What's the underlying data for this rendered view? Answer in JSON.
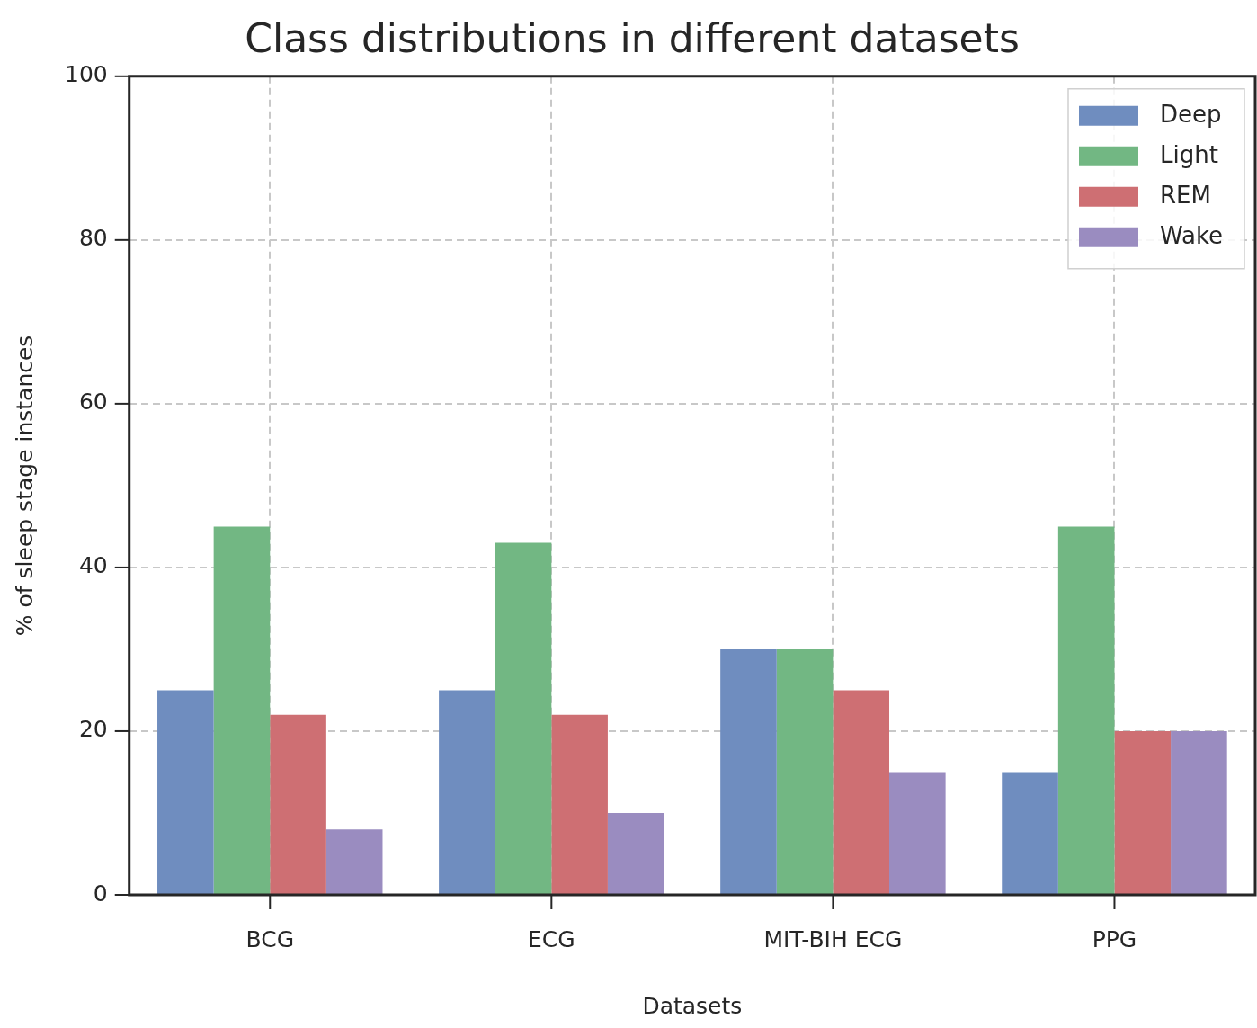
{
  "chart_data": {
    "type": "bar",
    "title": "Class distributions in different datasets",
    "xlabel": "Datasets",
    "ylabel": "% of sleep stage instances",
    "categories": [
      "BCG",
      "ECG",
      "MIT-BIH ECG",
      "PPG"
    ],
    "series": [
      {
        "name": "Deep",
        "color": "#6f8dbf",
        "values": [
          25,
          25,
          30,
          15
        ]
      },
      {
        "name": "Light",
        "color": "#72b783",
        "values": [
          45,
          43,
          30,
          45
        ]
      },
      {
        "name": "REM",
        "color": "#ce6f73",
        "values": [
          22,
          22,
          25,
          20
        ]
      },
      {
        "name": "Wake",
        "color": "#9a8cc0",
        "values": [
          8,
          10,
          15,
          20
        ]
      }
    ],
    "ylim": [
      0,
      100
    ],
    "yticks": [
      0,
      20,
      40,
      60,
      80,
      100
    ],
    "grid": true,
    "legend": "top right"
  }
}
